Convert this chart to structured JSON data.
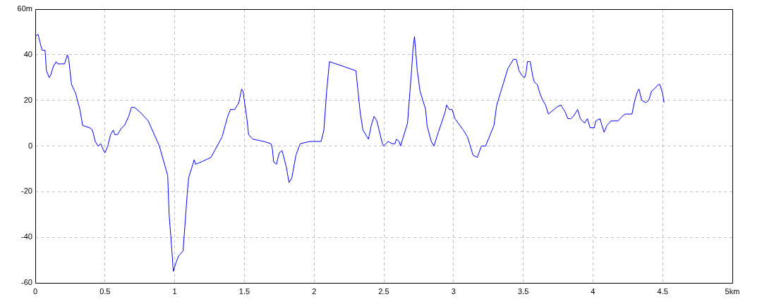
{
  "chart_data": {
    "type": "line",
    "x": [
      0,
      0.02,
      0.04,
      0.05,
      0.07,
      0.08,
      0.1,
      0.11,
      0.13,
      0.15,
      0.16,
      0.19,
      0.21,
      0.23,
      0.24,
      0.26,
      0.29,
      0.32,
      0.34,
      0.39,
      0.41,
      0.43,
      0.45,
      0.47,
      0.49,
      0.5,
      0.52,
      0.54,
      0.56,
      0.57,
      0.59,
      0.62,
      0.64,
      0.67,
      0.69,
      0.71,
      0.75,
      0.81,
      0.89,
      0.95,
      0.96,
      0.98,
      0.99,
      1.01,
      1.03,
      1.06,
      1.09,
      1.1,
      1.14,
      1.15,
      1.19,
      1.26,
      1.34,
      1.38,
      1.4,
      1.43,
      1.46,
      1.48,
      1.49,
      1.52,
      1.53,
      1.56,
      1.64,
      1.69,
      1.7,
      1.71,
      1.73,
      1.75,
      1.77,
      1.8,
      1.82,
      1.84,
      1.87,
      1.9,
      1.97,
      2.05,
      2.07,
      2.09,
      2.11,
      2.3,
      2.33,
      2.35,
      2.39,
      2.41,
      2.43,
      2.45,
      2.49,
      2.5,
      2.53,
      2.56,
      2.58,
      2.59,
      2.61,
      2.62,
      2.67,
      2.7,
      2.71,
      2.72,
      2.74,
      2.76,
      2.78,
      2.8,
      2.81,
      2.84,
      2.86,
      2.88,
      2.94,
      2.95,
      2.97,
      2.99,
      3.01,
      3.07,
      3.1,
      3.11,
      3.14,
      3.17,
      3.2,
      3.23,
      3.29,
      3.31,
      3.34,
      3.39,
      3.43,
      3.45,
      3.47,
      3.49,
      3.51,
      3.52,
      3.53,
      3.55,
      3.57,
      3.58,
      3.6,
      3.62,
      3.64,
      3.66,
      3.68,
      3.72,
      3.74,
      3.77,
      3.8,
      3.82,
      3.84,
      3.86,
      3.89,
      3.91,
      3.94,
      3.96,
      3.98,
      4.01,
      4.02,
      4.05,
      4.08,
      4.1,
      4.13,
      4.18,
      4.21,
      4.23,
      4.28,
      4.3,
      4.32,
      4.33,
      4.35,
      4.38,
      4.4,
      4.42,
      4.44,
      4.47,
      4.48,
      4.5,
      4.51
    ],
    "series": [
      {
        "color": "#0000ff",
        "values": [
          48,
          49,
          44,
          42,
          42,
          33,
          30,
          31,
          35,
          37,
          36,
          36,
          36,
          40,
          38,
          27,
          23,
          16,
          9,
          8,
          7,
          2,
          0,
          1,
          -2,
          -3,
          0,
          5,
          7,
          5,
          5,
          8,
          9,
          13,
          17,
          17,
          15,
          11,
          0,
          -13,
          -30,
          -46,
          -55,
          -51,
          -48,
          -46,
          -21,
          -14,
          -6,
          -8,
          -7,
          -5,
          4,
          13,
          16,
          16,
          19,
          25,
          24,
          11,
          5,
          3,
          2,
          1,
          -1,
          -7,
          -8,
          -3,
          -2,
          -9,
          -16,
          -14,
          -4,
          1,
          2,
          2,
          7,
          24,
          37,
          33,
          15,
          7,
          3,
          9,
          13,
          11,
          1,
          0,
          2,
          1,
          1,
          3,
          2,
          0,
          10,
          34,
          43,
          48,
          33,
          24,
          20,
          16,
          9,
          2,
          0,
          4,
          15,
          18,
          16,
          16,
          12,
          7,
          4,
          2,
          -4,
          -5,
          0,
          0,
          9,
          18,
          24,
          34,
          38,
          38,
          33,
          31,
          30,
          32,
          37,
          37,
          30,
          28,
          27,
          23,
          20,
          18,
          14,
          16,
          17,
          18,
          15,
          12,
          12,
          13,
          16,
          12,
          10,
          12,
          8,
          8,
          11,
          12,
          6,
          9,
          11,
          11,
          13,
          14,
          14,
          20,
          24,
          25,
          20,
          19,
          20,
          24,
          25,
          27,
          27,
          23,
          19
        ]
      }
    ],
    "xlim": [
      0,
      5
    ],
    "xticks": [
      0,
      0.5,
      1,
      1.5,
      2,
      2.5,
      3,
      3.5,
      4,
      4.5,
      {
        "value": 5,
        "label": "5km"
      }
    ],
    "ylim": [
      -60,
      60
    ],
    "yticks": [
      -60,
      -40,
      -20,
      0,
      20,
      40,
      {
        "value": 60,
        "label": "60m"
      }
    ],
    "grid": true,
    "legend": false,
    "marker": "none",
    "line_style": "solid"
  }
}
